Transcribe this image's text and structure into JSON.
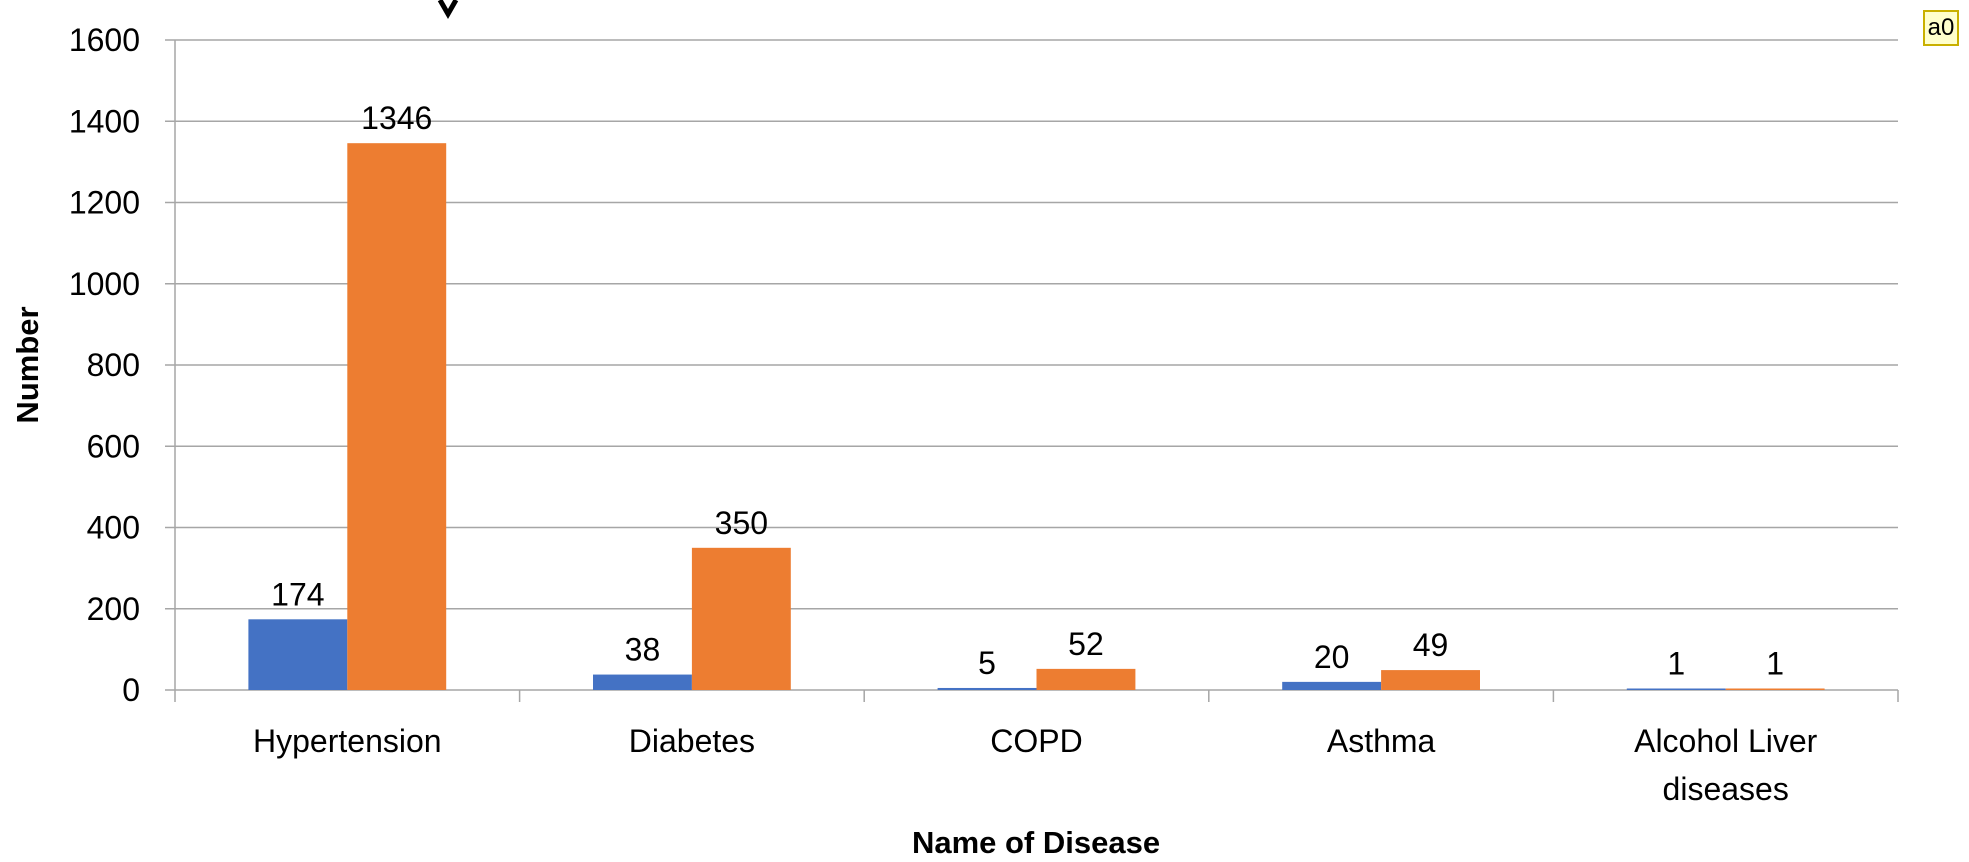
{
  "badge": {
    "label": "a0"
  },
  "chart_data": {
    "type": "bar",
    "title": "",
    "xlabel": "Name of Disease",
    "ylabel": "Number",
    "ylim": [
      0,
      1600
    ],
    "yticks": [
      0,
      200,
      400,
      600,
      800,
      1000,
      1200,
      1400,
      1600
    ],
    "categories": [
      [
        "Hypertension"
      ],
      [
        "Diabetes"
      ],
      [
        "COPD"
      ],
      [
        "Asthma"
      ],
      [
        "Alcohol Liver",
        "diseases"
      ]
    ],
    "series": [
      {
        "color": "#4472C4",
        "values": [
          174,
          38,
          5,
          20,
          1
        ]
      },
      {
        "color": "#ED7D31",
        "values": [
          1346,
          350,
          52,
          49,
          1
        ]
      }
    ],
    "grid": true,
    "legend": "none",
    "data_labels": true
  }
}
